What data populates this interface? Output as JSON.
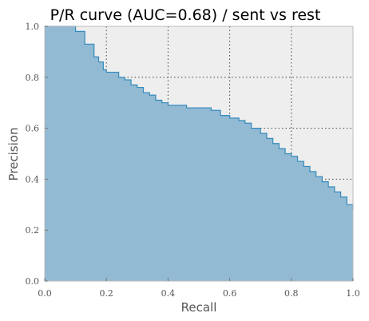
{
  "chart_data": {
    "type": "area",
    "title": "P/R curve (AUC=0.68) / sent vs rest",
    "xlabel": "Recall",
    "ylabel": "Precision",
    "xlim": [
      0.0,
      1.0
    ],
    "ylim": [
      0.0,
      1.0
    ],
    "xticks": [
      "0.0",
      "0.2",
      "0.4",
      "0.6",
      "0.8",
      "1.0"
    ],
    "yticks": [
      "0.0",
      "0.2",
      "0.4",
      "0.6",
      "0.8",
      "1.0"
    ],
    "grid": true,
    "colors": {
      "area_fill": "#92bad2",
      "line": "#348abd",
      "plot_background": "#eeeeee"
    },
    "series": [
      {
        "x": [
          0.0,
          0.1,
          0.1,
          0.13,
          0.13,
          0.16,
          0.16,
          0.175,
          0.175,
          0.19,
          0.19,
          0.2,
          0.2,
          0.22,
          0.22,
          0.24,
          0.24,
          0.26,
          0.26,
          0.28,
          0.28,
          0.3,
          0.3,
          0.32,
          0.32,
          0.34,
          0.34,
          0.36,
          0.36,
          0.38,
          0.38,
          0.4,
          0.4,
          0.43,
          0.43,
          0.46,
          0.46,
          0.5,
          0.5,
          0.54,
          0.54,
          0.57,
          0.57,
          0.6,
          0.6,
          0.63,
          0.63,
          0.65,
          0.65,
          0.67,
          0.67,
          0.7,
          0.7,
          0.72,
          0.72,
          0.74,
          0.74,
          0.76,
          0.76,
          0.78,
          0.78,
          0.8,
          0.8,
          0.82,
          0.82,
          0.84,
          0.84,
          0.86,
          0.86,
          0.88,
          0.88,
          0.9,
          0.9,
          0.92,
          0.92,
          0.94,
          0.94,
          0.96,
          0.96,
          0.98,
          0.98,
          1.0,
          1.0
        ],
        "y": [
          1.0,
          1.0,
          0.98,
          0.98,
          0.93,
          0.93,
          0.88,
          0.88,
          0.86,
          0.86,
          0.83,
          0.83,
          0.82,
          0.82,
          0.82,
          0.82,
          0.8,
          0.8,
          0.79,
          0.79,
          0.77,
          0.77,
          0.76,
          0.76,
          0.74,
          0.74,
          0.73,
          0.73,
          0.71,
          0.71,
          0.7,
          0.7,
          0.69,
          0.69,
          0.69,
          0.69,
          0.68,
          0.68,
          0.68,
          0.68,
          0.67,
          0.67,
          0.65,
          0.65,
          0.64,
          0.64,
          0.63,
          0.63,
          0.62,
          0.62,
          0.6,
          0.6,
          0.58,
          0.58,
          0.56,
          0.56,
          0.54,
          0.54,
          0.52,
          0.52,
          0.5,
          0.5,
          0.49,
          0.49,
          0.47,
          0.47,
          0.45,
          0.45,
          0.43,
          0.43,
          0.41,
          0.41,
          0.39,
          0.39,
          0.37,
          0.37,
          0.35,
          0.35,
          0.33,
          0.33,
          0.3,
          0.3,
          0.28
        ]
      }
    ]
  }
}
